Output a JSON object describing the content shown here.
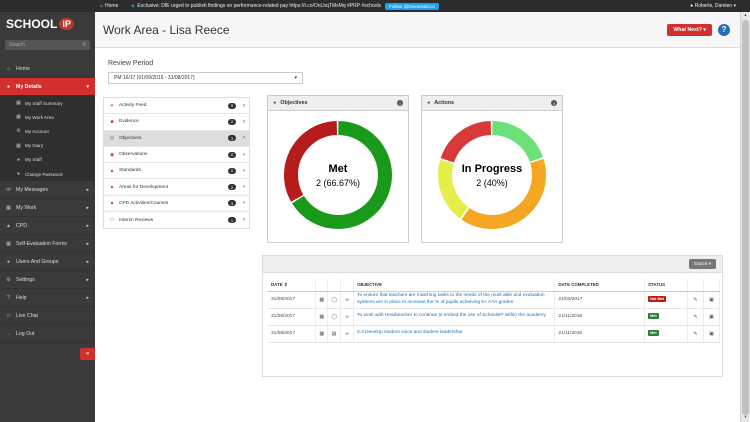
{
  "topbar": {
    "home": "Home",
    "tweet": "Exclusive: DfE urged to publish findings on performance-related pay https://t.co/OnLhqTMsMq #PRP #schools",
    "follow": "Follow @Devonssd.co",
    "user": "Roberts, Damien"
  },
  "sidebar": {
    "logo_text": "SCHOOL",
    "logo_ip": "iP",
    "search_placeholder": "Search",
    "items": [
      {
        "label": "Home",
        "icon": "home-icon"
      },
      {
        "label": "My Details",
        "icon": "user-icon",
        "active": true
      },
      {
        "label": "My Messages",
        "icon": "envelope-icon"
      },
      {
        "label": "My Work",
        "icon": "briefcase-icon"
      },
      {
        "label": "CPD",
        "icon": "graduation-icon"
      },
      {
        "label": "Self-Evaluation Forms",
        "icon": "form-icon"
      },
      {
        "label": "Users And Groups",
        "icon": "users-icon"
      },
      {
        "label": "Settings",
        "icon": "gear-icon"
      },
      {
        "label": "Help",
        "icon": "question-icon"
      },
      {
        "label": "Live Chat",
        "icon": "chat-icon"
      },
      {
        "label": "Log Out",
        "icon": "logout-icon"
      }
    ],
    "subitems": [
      {
        "label": "My Staff Summary"
      },
      {
        "label": "My Work Area"
      },
      {
        "label": "My Account"
      },
      {
        "label": "My Diary"
      },
      {
        "label": "My Staff"
      },
      {
        "label": "Change Password"
      }
    ]
  },
  "header": {
    "title": "Work Area - Lisa Reece",
    "what_next": "What Next?",
    "help": "?"
  },
  "review_period": {
    "label": "Review Period",
    "value": "PM 16/17 (01/09/2016 - 31/08/2017)"
  },
  "menu": [
    {
      "label": "Activity Feed",
      "count": "5"
    },
    {
      "label": "Evidence",
      "count": "2"
    },
    {
      "label": "Objectives",
      "count": "3",
      "active": true
    },
    {
      "label": "Observations",
      "count": "2"
    },
    {
      "label": "Standards",
      "count": "0"
    },
    {
      "label": "Areas for Development",
      "count": "2"
    },
    {
      "label": "CPD Activities/Courses",
      "count": "3"
    },
    {
      "label": "Interim Reviews",
      "count": "1"
    }
  ],
  "objectives_panel": {
    "title": "Objectives",
    "center_label": "Met",
    "center_value": "2 (66.67%)",
    "segments": [
      {
        "name": "Met",
        "fraction": 0.6667,
        "color": "#1a9a1a"
      },
      {
        "name": "Not Met",
        "fraction": 0.3333,
        "color": "#b71c1c"
      }
    ]
  },
  "actions_panel": {
    "title": "Actions",
    "center_label": "In Progress",
    "center_value": "2 (40%)",
    "segments": [
      {
        "fraction": 0.2,
        "color": "#6ee07a"
      },
      {
        "fraction": 0.4,
        "color": "#f5a623"
      },
      {
        "fraction": 0.2,
        "color": "#e6ef4a"
      },
      {
        "fraction": 0.2,
        "color": "#d83a3a"
      }
    ]
  },
  "table": {
    "export": "Export",
    "headers": {
      "date": "DATE",
      "objective": "OBJECTIVE",
      "date_completed": "DATE COMPLETED",
      "status": "STATUS"
    },
    "rows": [
      {
        "date": "31/08/2017",
        "objective": "To ensure that teachers are matching tasks to the needs of the most able and evaluation systems are in place to increase the % of pupils achieving 5+ A*/A grades",
        "date_completed": "21/03/2017",
        "status": "Not Met",
        "status_color": "#b71c1c"
      },
      {
        "date": "31/08/2017",
        "objective": "To work with Headteacher to continue to embed the use of SchoolsiP within the academy.",
        "date_completed": "21/11/2016",
        "status": "Met",
        "status_color": "#2e7d32"
      },
      {
        "date": "31/08/2017",
        "objective": "6.3 Develop student voice and student leadership",
        "date_completed": "21/11/2016",
        "status": "Met",
        "status_color": "#2e7d32"
      }
    ]
  }
}
